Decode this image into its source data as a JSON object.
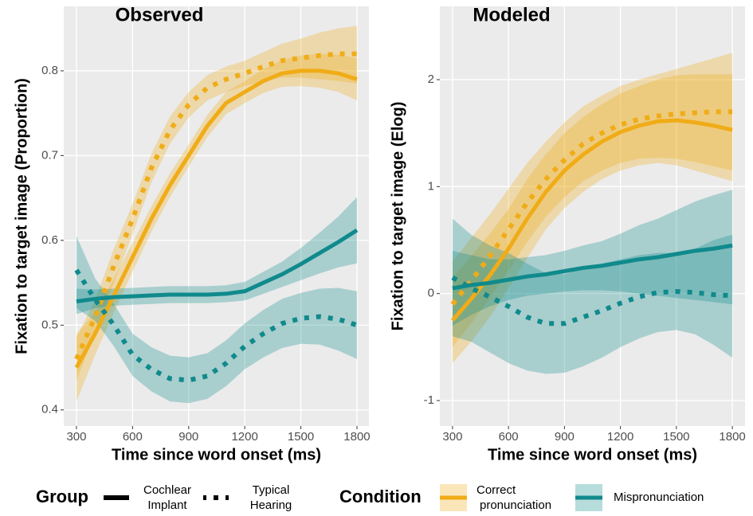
{
  "chart_data": [
    {
      "type": "line",
      "title": "Observed",
      "x_label": "Time since word onset (ms)",
      "y_label": "Fixation to target image (Proportion)",
      "xlim": [
        232,
        1864
      ],
      "xticks": [
        300,
        600,
        900,
        1200,
        1500,
        1800
      ],
      "ylim": [
        0.381,
        0.876
      ],
      "yticks": [
        0.4,
        0.5,
        0.6,
        0.7,
        0.8
      ],
      "grid": true,
      "x": [
        300,
        400,
        500,
        600,
        700,
        800,
        900,
        1000,
        1100,
        1200,
        1300,
        1400,
        1500,
        1600,
        1700,
        1800
      ],
      "series": [
        {
          "color": "#f0ac17",
          "style": "solid",
          "values": [
            0.45,
            0.49,
            0.535,
            0.58,
            0.625,
            0.665,
            0.7,
            0.735,
            0.762,
            0.775,
            0.788,
            0.797,
            0.8,
            0.8,
            0.797,
            0.79
          ],
          "lower": [
            0.41,
            0.465,
            0.515,
            0.563,
            0.61,
            0.651,
            0.687,
            0.722,
            0.749,
            0.762,
            0.774,
            0.781,
            0.782,
            0.78,
            0.775,
            0.765
          ],
          "upper": [
            0.49,
            0.515,
            0.555,
            0.597,
            0.64,
            0.679,
            0.713,
            0.748,
            0.775,
            0.788,
            0.802,
            0.813,
            0.818,
            0.82,
            0.819,
            0.815
          ]
        },
        {
          "color": "#f0ac17",
          "style": "dotted",
          "values": [
            0.46,
            0.51,
            0.57,
            0.625,
            0.685,
            0.73,
            0.76,
            0.78,
            0.79,
            0.797,
            0.805,
            0.812,
            0.815,
            0.818,
            0.82,
            0.82
          ],
          "lower": [
            0.435,
            0.49,
            0.55,
            0.607,
            0.668,
            0.714,
            0.745,
            0.765,
            0.775,
            0.782,
            0.788,
            0.792,
            0.792,
            0.79,
            0.788,
            0.785
          ],
          "upper": [
            0.485,
            0.53,
            0.59,
            0.643,
            0.702,
            0.746,
            0.775,
            0.795,
            0.805,
            0.812,
            0.822,
            0.832,
            0.838,
            0.845,
            0.85,
            0.853
          ]
        },
        {
          "color": "#108a8c",
          "style": "solid",
          "values": [
            0.528,
            0.531,
            0.533,
            0.534,
            0.535,
            0.536,
            0.536,
            0.536,
            0.537,
            0.54,
            0.55,
            0.56,
            0.572,
            0.585,
            0.598,
            0.612
          ],
          "lower": [
            0.513,
            0.52,
            0.523,
            0.524,
            0.525,
            0.526,
            0.526,
            0.526,
            0.527,
            0.529,
            0.537,
            0.545,
            0.553,
            0.561,
            0.568,
            0.573
          ],
          "upper": [
            0.543,
            0.542,
            0.543,
            0.544,
            0.545,
            0.546,
            0.546,
            0.546,
            0.547,
            0.551,
            0.563,
            0.575,
            0.591,
            0.609,
            0.628,
            0.651
          ]
        },
        {
          "color": "#108a8c",
          "style": "dotted",
          "values": [
            0.565,
            0.53,
            0.5,
            0.465,
            0.448,
            0.437,
            0.435,
            0.44,
            0.455,
            0.475,
            0.49,
            0.502,
            0.508,
            0.51,
            0.507,
            0.5
          ],
          "lower": [
            0.52,
            0.505,
            0.475,
            0.44,
            0.422,
            0.41,
            0.408,
            0.413,
            0.428,
            0.448,
            0.462,
            0.473,
            0.478,
            0.477,
            0.47,
            0.46
          ],
          "upper": [
            0.605,
            0.555,
            0.525,
            0.49,
            0.474,
            0.464,
            0.462,
            0.467,
            0.482,
            0.502,
            0.518,
            0.531,
            0.538,
            0.543,
            0.544,
            0.54
          ]
        }
      ]
    },
    {
      "type": "line",
      "title": "Modeled",
      "x_label": "Time since word onset (ms)",
      "y_label": "Fixation to target image (Elog)",
      "xlim": [
        232,
        1868
      ],
      "xticks": [
        300,
        600,
        900,
        1200,
        1500,
        1800
      ],
      "ylim": [
        -1.238,
        2.685
      ],
      "yticks": [
        -1,
        0,
        1,
        2
      ],
      "grid": true,
      "x": [
        300,
        400,
        500,
        600,
        700,
        800,
        900,
        1000,
        1100,
        1200,
        1300,
        1400,
        1500,
        1600,
        1700,
        1800
      ],
      "series": [
        {
          "color": "#f0ac17",
          "style": "solid",
          "values": [
            -0.25,
            -0.05,
            0.17,
            0.42,
            0.7,
            0.95,
            1.15,
            1.3,
            1.42,
            1.51,
            1.57,
            1.61,
            1.62,
            1.6,
            1.57,
            1.53
          ],
          "lower": [
            -0.65,
            -0.45,
            -0.22,
            0.05,
            0.33,
            0.6,
            0.8,
            0.95,
            1.07,
            1.15,
            1.2,
            1.22,
            1.2,
            1.15,
            1.1,
            1.05
          ],
          "upper": [
            0.15,
            0.35,
            0.56,
            0.79,
            1.07,
            1.3,
            1.5,
            1.65,
            1.77,
            1.87,
            1.94,
            2.0,
            2.04,
            2.05,
            2.05,
            2.05
          ]
        },
        {
          "color": "#f0ac17",
          "style": "dotted",
          "values": [
            -0.1,
            0.12,
            0.35,
            0.6,
            0.85,
            1.07,
            1.25,
            1.4,
            1.5,
            1.58,
            1.63,
            1.66,
            1.68,
            1.69,
            1.7,
            1.7
          ],
          "lower": [
            -0.5,
            -0.28,
            -0.04,
            0.22,
            0.48,
            0.72,
            0.9,
            1.05,
            1.15,
            1.22,
            1.26,
            1.27,
            1.26,
            1.23,
            1.19,
            1.15
          ],
          "upper": [
            0.3,
            0.52,
            0.74,
            0.98,
            1.22,
            1.42,
            1.6,
            1.75,
            1.85,
            1.94,
            2.0,
            2.05,
            2.1,
            2.15,
            2.2,
            2.25
          ]
        },
        {
          "color": "#108a8c",
          "style": "solid",
          "values": [
            0.05,
            0.08,
            0.1,
            0.13,
            0.16,
            0.18,
            0.21,
            0.24,
            0.26,
            0.29,
            0.32,
            0.34,
            0.37,
            0.4,
            0.42,
            0.45
          ],
          "lower": [
            -0.3,
            -0.2,
            -0.12,
            -0.06,
            -0.02,
            0.0,
            0.02,
            0.03,
            0.03,
            0.02,
            0.0,
            -0.02,
            -0.04,
            -0.06,
            -0.08,
            -0.1
          ],
          "upper": [
            0.4,
            0.36,
            0.32,
            0.32,
            0.34,
            0.36,
            0.4,
            0.45,
            0.49,
            0.56,
            0.64,
            0.7,
            0.78,
            0.86,
            0.92,
            0.97
          ]
        },
        {
          "color": "#108a8c",
          "style": "dotted",
          "values": [
            0.15,
            0.05,
            -0.03,
            -0.12,
            -0.22,
            -0.28,
            -0.28,
            -0.22,
            -0.16,
            -0.09,
            -0.03,
            0.01,
            0.02,
            0.01,
            -0.01,
            -0.02
          ],
          "lower": [
            -0.4,
            -0.45,
            -0.55,
            -0.65,
            -0.72,
            -0.75,
            -0.74,
            -0.68,
            -0.6,
            -0.5,
            -0.42,
            -0.36,
            -0.34,
            -0.38,
            -0.48,
            -0.6
          ],
          "upper": [
            0.7,
            0.55,
            0.45,
            0.38,
            0.28,
            0.19,
            0.18,
            0.24,
            0.28,
            0.32,
            0.36,
            0.38,
            0.38,
            0.42,
            0.5,
            0.55
          ]
        }
      ]
    }
  ],
  "legend": {
    "group": {
      "title": "Group",
      "labels": [
        [
          "Cochlear",
          "Implant"
        ],
        [
          "Typical",
          "Hearing"
        ]
      ],
      "styles": [
        "solid",
        "dotted"
      ]
    },
    "condition": {
      "title": "Condition",
      "labels": [
        [
          "Correct",
          "pronunciation"
        ],
        [
          "Mispronunciation"
        ]
      ],
      "colors": [
        "#f0ac17",
        "#108a8c"
      ]
    }
  }
}
